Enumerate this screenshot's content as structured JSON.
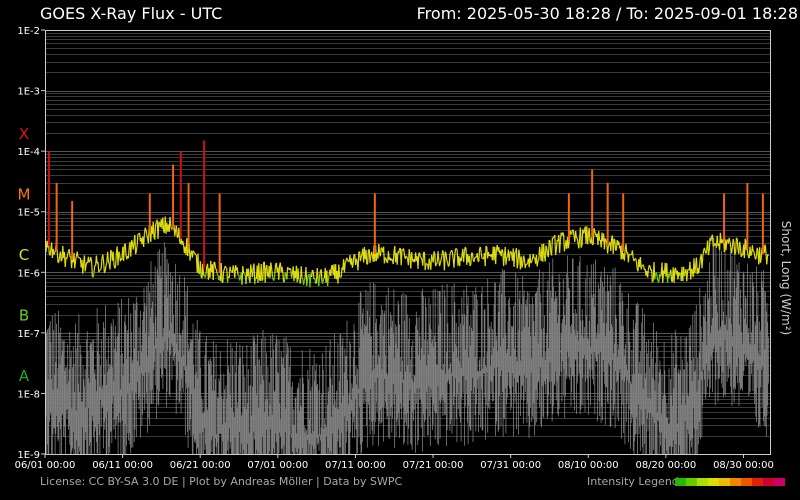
{
  "header": {
    "title": "GOES X-Ray Flux - UTC",
    "range": "From: 2025-05-30 18:28  /  To: 2025-09-01 18:28"
  },
  "footer": {
    "license": "License: CC BY-SA 3.0 DE | Plot by Andreas Möller | Data by SWPC",
    "intensity_legend": "Intensity Legend",
    "legend_colors": [
      "#22bb00",
      "#66cc00",
      "#aadd00",
      "#dddd00",
      "#eebb00",
      "#ee8800",
      "#ee5500",
      "#dd2200",
      "#cc0033",
      "#cc0066"
    ]
  },
  "chart_data": {
    "type": "line",
    "title": "GOES X-Ray Flux - UTC",
    "ylabel": "Short, Long (W/m²)",
    "yscale": "log",
    "ylim": [
      1e-09,
      0.01
    ],
    "y_tick_labels": [
      "1E-2",
      "1E-3",
      "1E-4",
      "1E-5",
      "1E-6",
      "1E-7",
      "1E-8",
      "1E-9"
    ],
    "flare_classes": [
      {
        "label": "X",
        "flux": 0.0002,
        "color": "#dd1111"
      },
      {
        "label": "M",
        "flux": 2e-05,
        "color": "#ff7711"
      },
      {
        "label": "C",
        "flux": 2e-06,
        "color": "#dddd22"
      },
      {
        "label": "B",
        "flux": 2e-07,
        "color": "#66cc22"
      },
      {
        "label": "A",
        "flux": 2e-08,
        "color": "#22aa22"
      }
    ],
    "xlim": [
      "2025-06-01 00:00",
      "2025-09-02 10:00"
    ],
    "x_tick_labels": [
      "06/01 00:00",
      "06/11 00:00",
      "06/21 00:00",
      "07/01 00:00",
      "07/11 00:00",
      "07/21 00:00",
      "07/31 00:00",
      "08/10 00:00",
      "08/20 00:00",
      "08/30 00:00"
    ],
    "grid": true,
    "series": [
      {
        "name": "Long",
        "color_by_class": true,
        "x": [
          "06/01",
          "06/03",
          "06/05",
          "06/07",
          "06/09",
          "06/11",
          "06/13",
          "06/15",
          "06/17",
          "06/19",
          "06/21",
          "06/23",
          "06/25",
          "06/27",
          "06/29",
          "07/01",
          "07/03",
          "07/05",
          "07/07",
          "07/09",
          "07/11",
          "07/13",
          "07/15",
          "07/17",
          "07/19",
          "07/21",
          "07/23",
          "07/25",
          "07/27",
          "07/29",
          "07/31",
          "08/02",
          "08/04",
          "08/06",
          "08/08",
          "08/10",
          "08/12",
          "08/14",
          "08/16",
          "08/18",
          "08/20",
          "08/22",
          "08/24",
          "08/26",
          "08/28",
          "08/30",
          "09/01"
        ],
        "y": [
          3e-06,
          2e-06,
          1.5e-06,
          1.2e-06,
          1.5e-06,
          2e-06,
          3e-06,
          5e-06,
          6e-06,
          3e-06,
          1.2e-06,
          1e-06,
          9e-07,
          9e-07,
          1e-06,
          1e-06,
          9e-07,
          8e-07,
          8e-07,
          1e-06,
          1.5e-06,
          2e-06,
          2e-06,
          1.8e-06,
          1.6e-06,
          1.5e-06,
          1.6e-06,
          1.8e-06,
          1.8e-06,
          2e-06,
          1.8e-06,
          1.5e-06,
          2e-06,
          3e-06,
          3.5e-06,
          4e-06,
          3e-06,
          2.5e-06,
          1.5e-06,
          1e-06,
          1e-06,
          1e-06,
          1.2e-06,
          3e-06,
          3e-06,
          2.5e-06,
          2e-06
        ]
      },
      {
        "name": "Short",
        "color": "#808080",
        "x": [
          "06/01",
          "06/03",
          "06/05",
          "06/07",
          "06/09",
          "06/11",
          "06/13",
          "06/15",
          "06/17",
          "06/19",
          "06/21",
          "06/23",
          "06/25",
          "06/27",
          "06/29",
          "07/01",
          "07/03",
          "07/05",
          "07/07",
          "07/09",
          "07/11",
          "07/13",
          "07/15",
          "07/17",
          "07/19",
          "07/21",
          "07/23",
          "07/25",
          "07/27",
          "07/29",
          "07/31",
          "08/02",
          "08/04",
          "08/06",
          "08/08",
          "08/10",
          "08/12",
          "08/14",
          "08/16",
          "08/18",
          "08/20",
          "08/22",
          "08/24",
          "08/26",
          "08/28",
          "08/30",
          "09/01"
        ],
        "y": [
          1e-08,
          6e-09,
          5e-09,
          6e-09,
          1e-08,
          1e-08,
          2e-08,
          5e-08,
          1e-07,
          3e-08,
          3e-09,
          2e-09,
          3e-09,
          2e-09,
          3e-09,
          3e-09,
          2e-09,
          2e-09,
          2e-09,
          3e-09,
          1e-08,
          2e-08,
          2e-08,
          1.5e-08,
          1.5e-08,
          1.5e-08,
          2e-08,
          2e-08,
          2e-08,
          3e-08,
          3e-08,
          2e-08,
          3e-08,
          5e-08,
          5e-08,
          5e-08,
          5e-08,
          3e-08,
          1e-08,
          5e-09,
          3e-09,
          3e-09,
          1e-08,
          1e-07,
          1e-07,
          6e-08,
          3e-08
        ]
      }
    ],
    "flare_peaks": [
      {
        "x": "06/01",
        "y": 0.0001
      },
      {
        "x": "06/02",
        "y": 3e-05
      },
      {
        "x": "06/04",
        "y": 1.5e-05
      },
      {
        "x": "06/14",
        "y": 2e-05
      },
      {
        "x": "06/17",
        "y": 6e-05
      },
      {
        "x": "06/18",
        "y": 0.0001
      },
      {
        "x": "06/19",
        "y": 3e-05
      },
      {
        "x": "06/21",
        "y": 0.00015
      },
      {
        "x": "06/23",
        "y": 2e-05
      },
      {
        "x": "07/13",
        "y": 2e-05
      },
      {
        "x": "08/07",
        "y": 2e-05
      },
      {
        "x": "08/10",
        "y": 5e-05
      },
      {
        "x": "08/12",
        "y": 3e-05
      },
      {
        "x": "08/14",
        "y": 2e-05
      },
      {
        "x": "08/27",
        "y": 2e-05
      },
      {
        "x": "08/30",
        "y": 3e-05
      },
      {
        "x": "09/01",
        "y": 2e-05
      }
    ]
  }
}
